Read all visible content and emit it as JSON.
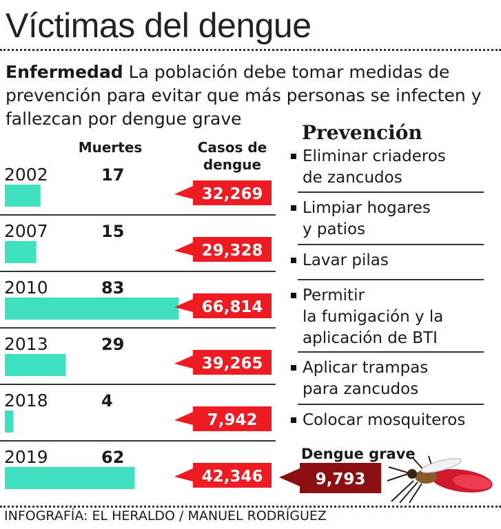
{
  "title": "Víctimas del dengue",
  "intro": {
    "lead": "Enfermedad",
    "text": "La población debe tomar medidas de prevención para evitar que más personas se infecten y fallezcan por dengue grave"
  },
  "columns": {
    "deaths": "Muertes",
    "cases_line1": "Casos de",
    "cases_line2": "dengue"
  },
  "prevention": {
    "title": "Prevención",
    "items": [
      [
        "Eliminar criaderos",
        "de zancudos"
      ],
      [
        "Limpiar hogares",
        "y patios"
      ],
      [
        "Lavar pilas"
      ],
      [
        "Permitir",
        "la fumigación y la",
        "aplicación de BTI"
      ],
      [
        "Aplicar trampas",
        "para zancudos"
      ],
      [
        "Colocar mosquiteros"
      ]
    ]
  },
  "severe_dengue": {
    "label": "Dengue grave",
    "value": "9,793",
    "color": "#8c0f12"
  },
  "credit": "INFOGRAFÍA: EL HERALDO / MANUEL RODRÍGUEZ",
  "colors": {
    "bar": "#3fe0c0",
    "case_tag": "#ee1b22",
    "severe_tag": "#8c0f12",
    "mosquito": "mosquito-illustration"
  },
  "chart_data": {
    "type": "bar",
    "categories": [
      "2002",
      "2007",
      "2010",
      "2013",
      "2018",
      "2019"
    ],
    "series": [
      {
        "name": "Muertes",
        "values": [
          17,
          15,
          83,
          29,
          4,
          62
        ]
      },
      {
        "name": "Casos de dengue",
        "values": [
          32269,
          29328,
          66814,
          39265,
          7942,
          42346
        ]
      }
    ],
    "value_labels": {
      "deaths": [
        "17",
        "15",
        "83",
        "29",
        "4",
        "62"
      ],
      "cases": [
        "32,269",
        "29,328",
        "66,814",
        "39,265",
        "7,942",
        "42,346"
      ]
    }
  }
}
